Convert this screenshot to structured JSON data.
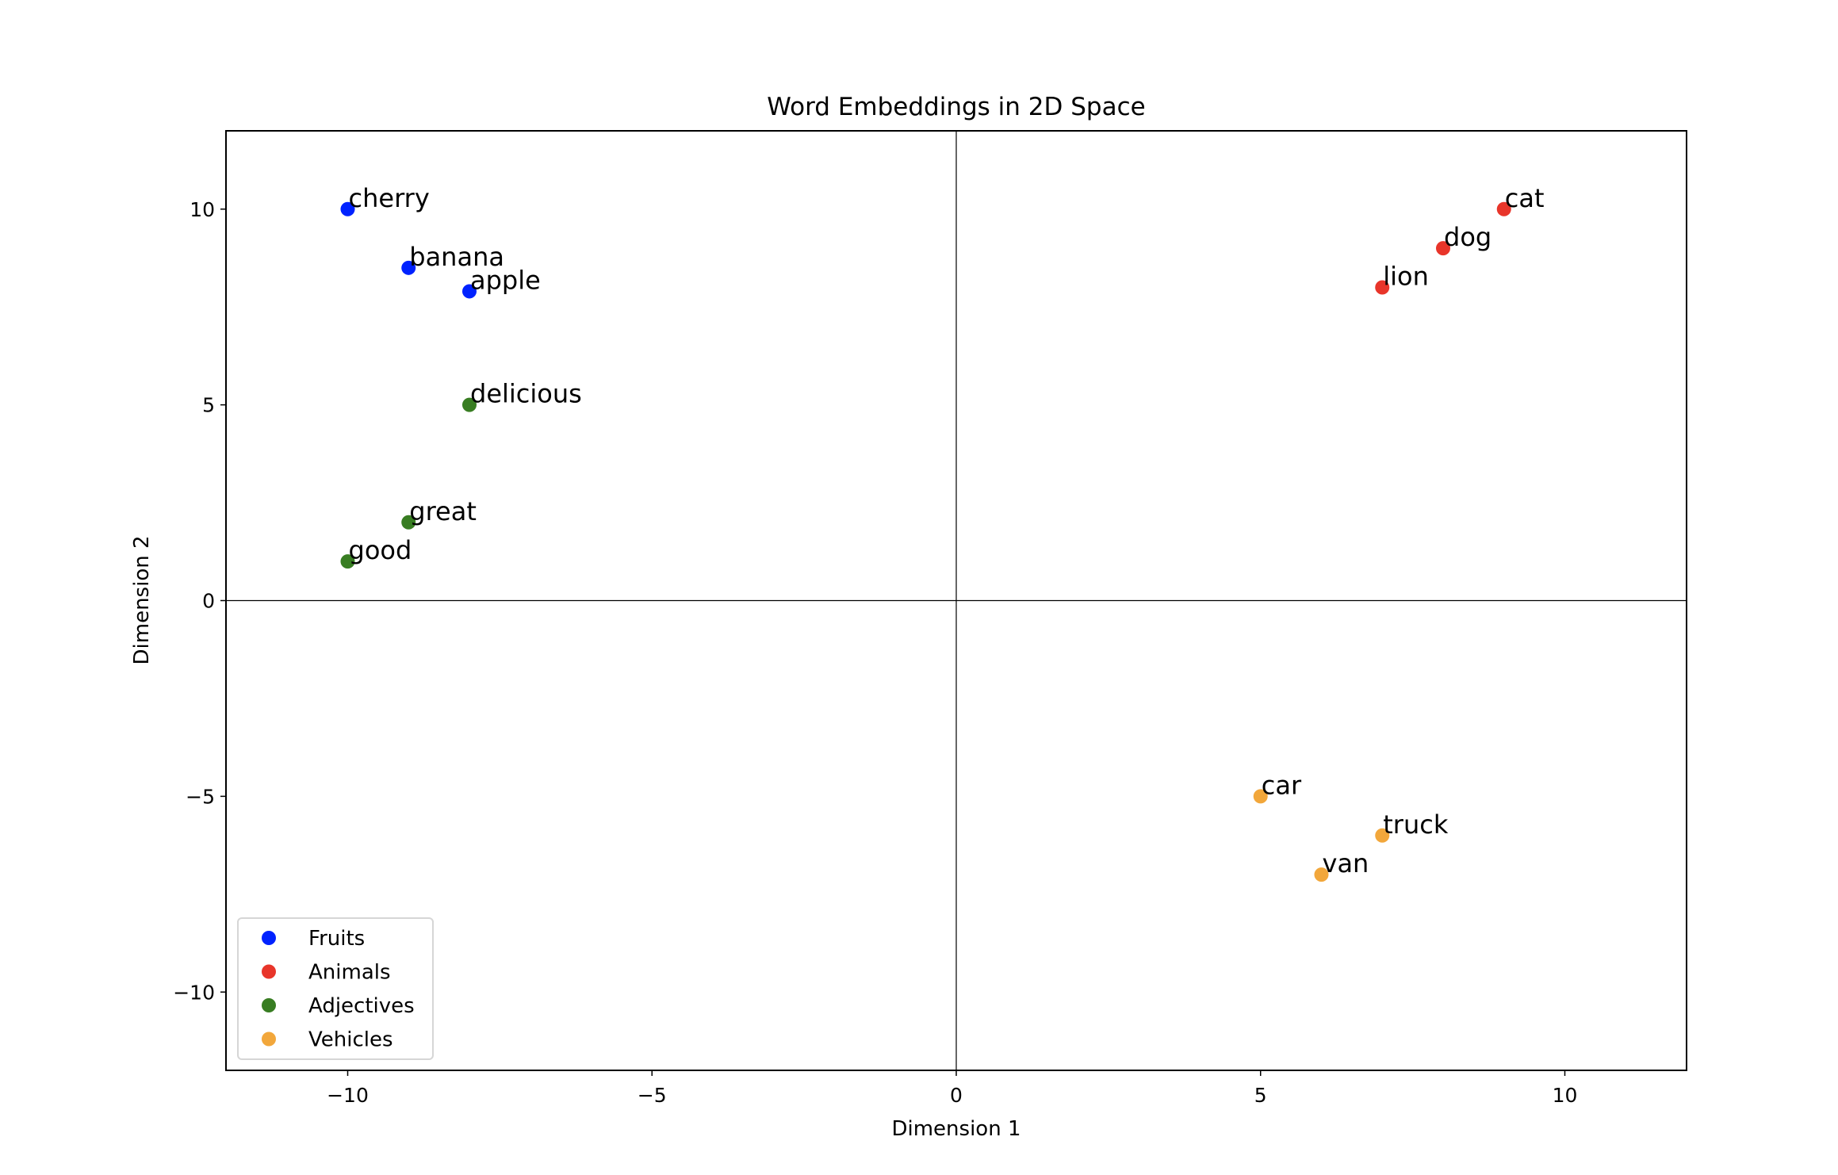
{
  "chart_data": {
    "type": "scatter",
    "title": "Word Embeddings in 2D Space",
    "xlabel": "Dimension 1",
    "ylabel": "Dimension 2",
    "xlim": [
      -12,
      12
    ],
    "ylim": [
      -12,
      12
    ],
    "xticks": [
      -10,
      -5,
      0,
      5,
      10
    ],
    "yticks": [
      -10,
      -5,
      0,
      5,
      10
    ],
    "xtick_labels": [
      "−10",
      "−5",
      "0",
      "5",
      "10"
    ],
    "ytick_labels": [
      "−10",
      "−5",
      "0",
      "5",
      "10"
    ],
    "grid": false,
    "reference_lines": {
      "x": 0,
      "y": 0
    },
    "legend_position": "lower-left",
    "series": [
      {
        "name": "Fruits",
        "color": "#0022ff",
        "points": [
          {
            "label": "apple",
            "x": -8,
            "y": 7.9
          },
          {
            "label": "banana",
            "x": -9,
            "y": 8.5
          },
          {
            "label": "cherry",
            "x": -10,
            "y": 10
          }
        ]
      },
      {
        "name": "Animals",
        "color": "#e8352a",
        "points": [
          {
            "label": "dog",
            "x": 8,
            "y": 9
          },
          {
            "label": "cat",
            "x": 9,
            "y": 10
          },
          {
            "label": "lion",
            "x": 7,
            "y": 8
          }
        ]
      },
      {
        "name": "Adjectives",
        "color": "#387d22",
        "points": [
          {
            "label": "good",
            "x": -10,
            "y": 1
          },
          {
            "label": "great",
            "x": -9,
            "y": 2
          },
          {
            "label": "delicious",
            "x": -8,
            "y": 5
          }
        ]
      },
      {
        "name": "Vehicles",
        "color": "#f2a73b",
        "points": [
          {
            "label": "car",
            "x": 5,
            "y": -5
          },
          {
            "label": "truck",
            "x": 7,
            "y": -6
          },
          {
            "label": "van",
            "x": 6,
            "y": -7
          }
        ]
      }
    ]
  }
}
